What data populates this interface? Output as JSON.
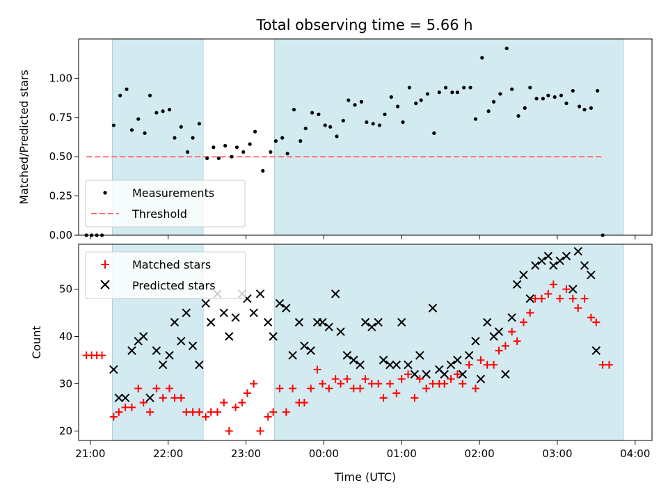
{
  "chart_data": [
    {
      "type": "scatter",
      "title": "Total observing time = 5.66 h",
      "xlabel": "",
      "ylabel": "Matched/Predicted stars",
      "xlim": [
        "20:51",
        "04:13"
      ],
      "ylim": [
        0,
        1.25
      ],
      "yticks": [
        0.0,
        0.25,
        0.5,
        0.75,
        1.0
      ],
      "ytick_labels": [
        "0.00",
        "0.25",
        "0.50",
        "0.75",
        "1.00"
      ],
      "legend_position": "lower-left",
      "shaded_intervals": [
        [
          "21:17",
          "22:27"
        ],
        [
          "23:22",
          "03:51"
        ]
      ],
      "shade_color": "#d3eaf0",
      "series": [
        {
          "name": "Measurements",
          "marker": "dot",
          "color": "#000000",
          "points": [
            [
              "20:57",
              0.0
            ],
            [
              "21:01",
              0.0
            ],
            [
              "21:05",
              0.0
            ],
            [
              "21:09",
              0.0
            ],
            [
              "21:18",
              0.7
            ],
            [
              "21:23",
              0.89
            ],
            [
              "21:28",
              0.93
            ],
            [
              "21:32",
              0.67
            ],
            [
              "21:37",
              0.74
            ],
            [
              "21:42",
              0.65
            ],
            [
              "21:46",
              0.89
            ],
            [
              "21:51",
              0.78
            ],
            [
              "21:56",
              0.79
            ],
            [
              "22:01",
              0.8
            ],
            [
              "22:05",
              0.62
            ],
            [
              "22:10",
              0.69
            ],
            [
              "22:15",
              0.53
            ],
            [
              "22:19",
              0.62
            ],
            [
              "22:24",
              0.71
            ],
            [
              "22:30",
              0.49
            ],
            [
              "22:35",
              0.56
            ],
            [
              "22:39",
              0.49
            ],
            [
              "22:44",
              0.57
            ],
            [
              "22:49",
              0.5
            ],
            [
              "22:53",
              0.56
            ],
            [
              "22:58",
              0.53
            ],
            [
              "23:03",
              0.58
            ],
            [
              "23:07",
              0.66
            ],
            [
              "23:13",
              0.41
            ],
            [
              "23:19",
              0.53
            ],
            [
              "23:23",
              0.6
            ],
            [
              "23:28",
              0.62
            ],
            [
              "23:32",
              0.52
            ],
            [
              "23:37",
              0.8
            ],
            [
              "23:42",
              0.6
            ],
            [
              "23:46",
              0.68
            ],
            [
              "23:51",
              0.78
            ],
            [
              "23:56",
              0.77
            ],
            [
              "00:01",
              0.7
            ],
            [
              "00:05",
              0.69
            ],
            [
              "00:10",
              0.63
            ],
            [
              "00:15",
              0.73
            ],
            [
              "00:19",
              0.86
            ],
            [
              "00:24",
              0.83
            ],
            [
              "00:29",
              0.85
            ],
            [
              "00:33",
              0.72
            ],
            [
              "00:38",
              0.71
            ],
            [
              "00:43",
              0.7
            ],
            [
              "00:47",
              0.77
            ],
            [
              "00:52",
              0.88
            ],
            [
              "00:57",
              0.82
            ],
            [
              "01:01",
              0.72
            ],
            [
              "01:06",
              0.94
            ],
            [
              "01:11",
              0.84
            ],
            [
              "01:15",
              0.86
            ],
            [
              "01:20",
              0.9
            ],
            [
              "01:25",
              0.65
            ],
            [
              "01:29",
              0.91
            ],
            [
              "01:34",
              0.94
            ],
            [
              "01:39",
              0.91
            ],
            [
              "01:43",
              0.91
            ],
            [
              "01:48",
              0.94
            ],
            [
              "01:53",
              0.94
            ],
            [
              "01:57",
              0.74
            ],
            [
              "02:02",
              1.13
            ],
            [
              "02:07",
              0.79
            ],
            [
              "02:11",
              0.85
            ],
            [
              "02:16",
              0.9
            ],
            [
              "02:21",
              1.19
            ],
            [
              "02:25",
              0.93
            ],
            [
              "02:30",
              0.76
            ],
            [
              "02:35",
              0.81
            ],
            [
              "02:39",
              0.94
            ],
            [
              "02:44",
              0.87
            ],
            [
              "02:49",
              0.87
            ],
            [
              "02:53",
              0.89
            ],
            [
              "02:58",
              0.88
            ],
            [
              "03:03",
              0.89
            ],
            [
              "03:07",
              0.84
            ],
            [
              "03:12",
              0.92
            ],
            [
              "03:17",
              0.82
            ],
            [
              "03:21",
              0.8
            ],
            [
              "03:26",
              0.81
            ],
            [
              "03:31",
              0.92
            ],
            [
              "03:35",
              0.0
            ]
          ]
        },
        {
          "name": "Threshold",
          "marker": "dashed-line",
          "color": "#ff7070",
          "points": [
            [
              "20:57",
              0.5
            ],
            [
              "03:35",
              0.5
            ]
          ]
        }
      ]
    },
    {
      "type": "scatter",
      "title": "",
      "xlabel": "Time (UTC)",
      "ylabel": "Count",
      "xlim": [
        "20:51",
        "04:13"
      ],
      "ylim": [
        18,
        59.5
      ],
      "yticks": [
        20,
        30,
        40,
        50
      ],
      "ytick_labels": [
        "20",
        "30",
        "40",
        "50"
      ],
      "xticks": [
        "21:00",
        "22:00",
        "23:00",
        "00:00",
        "01:00",
        "02:00",
        "03:00",
        "04:00"
      ],
      "legend_position": "upper-left",
      "shaded_intervals": [
        [
          "21:17",
          "22:27"
        ],
        [
          "23:22",
          "03:51"
        ]
      ],
      "shade_color": "#d3eaf0",
      "series": [
        {
          "name": "Matched stars",
          "marker": "plus",
          "color": "#ff0000",
          "points": [
            [
              "20:57",
              36
            ],
            [
              "21:01",
              36
            ],
            [
              "21:05",
              36
            ],
            [
              "21:09",
              36
            ],
            [
              "21:18",
              23
            ],
            [
              "21:22",
              24
            ],
            [
              "21:27",
              25
            ],
            [
              "21:32",
              25
            ],
            [
              "21:37",
              29
            ],
            [
              "21:41",
              26
            ],
            [
              "21:46",
              24
            ],
            [
              "21:51",
              29
            ],
            [
              "21:56",
              27
            ],
            [
              "22:01",
              29
            ],
            [
              "22:05",
              27
            ],
            [
              "22:10",
              27
            ],
            [
              "22:14",
              24
            ],
            [
              "22:19",
              24
            ],
            [
              "22:24",
              24
            ],
            [
              "22:29",
              23
            ],
            [
              "22:33",
              24
            ],
            [
              "22:38",
              24
            ],
            [
              "22:43",
              26
            ],
            [
              "22:47",
              20
            ],
            [
              "22:52",
              25
            ],
            [
              "22:57",
              26
            ],
            [
              "23:01",
              28
            ],
            [
              "23:06",
              30
            ],
            [
              "23:11",
              20
            ],
            [
              "23:17",
              23
            ],
            [
              "23:21",
              24
            ],
            [
              "23:26",
              29
            ],
            [
              "23:31",
              24
            ],
            [
              "23:36",
              29
            ],
            [
              "23:41",
              26
            ],
            [
              "23:45",
              26
            ],
            [
              "23:50",
              29
            ],
            [
              "23:55",
              33
            ],
            [
              "23:59",
              30
            ],
            [
              "00:04",
              29
            ],
            [
              "00:09",
              31
            ],
            [
              "00:13",
              30
            ],
            [
              "00:18",
              31
            ],
            [
              "00:23",
              29
            ],
            [
              "00:28",
              29
            ],
            [
              "00:32",
              31
            ],
            [
              "00:37",
              30
            ],
            [
              "00:42",
              30
            ],
            [
              "00:46",
              27
            ],
            [
              "00:51",
              30
            ],
            [
              "00:56",
              28
            ],
            [
              "01:00",
              31
            ],
            [
              "01:05",
              32
            ],
            [
              "01:10",
              27
            ],
            [
              "01:14",
              31
            ],
            [
              "01:19",
              29
            ],
            [
              "01:24",
              30
            ],
            [
              "01:29",
              30
            ],
            [
              "01:33",
              30
            ],
            [
              "01:38",
              31
            ],
            [
              "01:43",
              32
            ],
            [
              "01:47",
              30
            ],
            [
              "01:52",
              34
            ],
            [
              "01:57",
              29
            ],
            [
              "02:01",
              35
            ],
            [
              "02:06",
              34
            ],
            [
              "02:11",
              34
            ],
            [
              "02:15",
              37
            ],
            [
              "02:20",
              38
            ],
            [
              "02:25",
              41
            ],
            [
              "02:29",
              39
            ],
            [
              "02:34",
              43
            ],
            [
              "02:39",
              45
            ],
            [
              "02:43",
              48
            ],
            [
              "02:48",
              48
            ],
            [
              "02:53",
              49
            ],
            [
              "02:57",
              51
            ],
            [
              "03:02",
              48
            ],
            [
              "03:07",
              50
            ],
            [
              "03:12",
              48
            ],
            [
              "03:16",
              46
            ],
            [
              "03:21",
              48
            ],
            [
              "03:26",
              44
            ],
            [
              "03:30",
              43
            ],
            [
              "03:35",
              34
            ],
            [
              "03:40",
              34
            ]
          ]
        },
        {
          "name": "Predicted stars",
          "marker": "x",
          "color": "#000000",
          "points": [
            [
              "21:18",
              33
            ],
            [
              "21:22",
              27
            ],
            [
              "21:27",
              27
            ],
            [
              "21:32",
              37
            ],
            [
              "21:37",
              39
            ],
            [
              "21:41",
              40
            ],
            [
              "21:46",
              27
            ],
            [
              "21:51",
              37
            ],
            [
              "21:56",
              34
            ],
            [
              "22:01",
              36
            ],
            [
              "22:05",
              43
            ],
            [
              "22:10",
              39
            ],
            [
              "22:14",
              45
            ],
            [
              "22:19",
              38
            ],
            [
              "22:24",
              34
            ],
            [
              "22:29",
              47
            ],
            [
              "22:33",
              43
            ],
            [
              "22:38",
              49
            ],
            [
              "22:43",
              45
            ],
            [
              "22:47",
              40
            ],
            [
              "22:52",
              44
            ],
            [
              "22:57",
              49
            ],
            [
              "23:01",
              48
            ],
            [
              "23:06",
              45
            ],
            [
              "23:11",
              49
            ],
            [
              "23:17",
              43
            ],
            [
              "23:21",
              40
            ],
            [
              "23:26",
              47
            ],
            [
              "23:31",
              46
            ],
            [
              "23:36",
              36
            ],
            [
              "23:41",
              43
            ],
            [
              "23:45",
              38
            ],
            [
              "23:50",
              37
            ],
            [
              "23:55",
              43
            ],
            [
              "23:59",
              43
            ],
            [
              "00:04",
              42
            ],
            [
              "00:09",
              49
            ],
            [
              "00:13",
              41
            ],
            [
              "00:18",
              36
            ],
            [
              "00:23",
              35
            ],
            [
              "00:28",
              34
            ],
            [
              "00:32",
              43
            ],
            [
              "00:37",
              42
            ],
            [
              "00:42",
              43
            ],
            [
              "00:46",
              35
            ],
            [
              "00:51",
              34
            ],
            [
              "00:56",
              34
            ],
            [
              "01:00",
              43
            ],
            [
              "01:05",
              34
            ],
            [
              "01:10",
              32
            ],
            [
              "01:14",
              36
            ],
            [
              "01:19",
              32
            ],
            [
              "01:24",
              46
            ],
            [
              "01:29",
              33
            ],
            [
              "01:33",
              32
            ],
            [
              "01:38",
              34
            ],
            [
              "01:43",
              35
            ],
            [
              "01:47",
              32
            ],
            [
              "01:52",
              36
            ],
            [
              "01:57",
              39
            ],
            [
              "02:01",
              31
            ],
            [
              "02:06",
              43
            ],
            [
              "02:11",
              40
            ],
            [
              "02:15",
              41
            ],
            [
              "02:20",
              32
            ],
            [
              "02:25",
              44
            ],
            [
              "02:29",
              51
            ],
            [
              "02:34",
              53
            ],
            [
              "02:39",
              48
            ],
            [
              "02:43",
              55
            ],
            [
              "02:48",
              56
            ],
            [
              "02:53",
              57
            ],
            [
              "02:57",
              55
            ],
            [
              "03:02",
              56
            ],
            [
              "03:07",
              57
            ],
            [
              "03:12",
              50
            ],
            [
              "03:16",
              58
            ],
            [
              "03:21",
              55
            ],
            [
              "03:26",
              53
            ],
            [
              "03:30",
              37
            ]
          ]
        }
      ]
    }
  ]
}
